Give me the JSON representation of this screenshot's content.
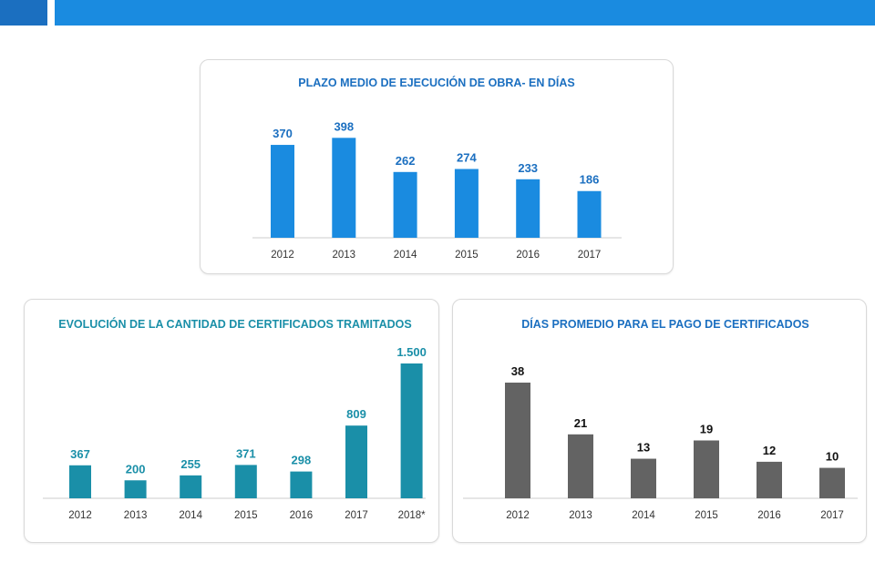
{
  "colors": {
    "header_bar": "#1a8be0",
    "header_bar_accent": "#1b6fc0",
    "chart1_bar": "#1a8be0",
    "chart1_text": "#1b6fc0",
    "chart2_bar": "#1a8fa8",
    "chart2_text": "#1a8fa8",
    "chart3_bar": "#636363",
    "chart3_text": "#111111",
    "axis": "#cccccc"
  },
  "chart_data": [
    {
      "type": "bar",
      "title": "PLAZO MEDIO DE EJECUCIÓN DE OBRA- EN DÍAS",
      "categories": [
        "2012",
        "2013",
        "2014",
        "2015",
        "2016",
        "2017"
      ],
      "values": [
        370,
        398,
        262,
        274,
        233,
        186
      ],
      "value_labels": [
        "370",
        "398",
        "262",
        "274",
        "233",
        "186"
      ],
      "ylim": [
        0,
        450
      ],
      "grid": false,
      "legend": "none"
    },
    {
      "type": "bar",
      "title": "EVOLUCIÓN DE LA CANTIDAD DE CERTIFICADOS TRAMITADOS",
      "categories": [
        "2012",
        "2013",
        "2014",
        "2015",
        "2016",
        "2017",
        "2018*"
      ],
      "values": [
        367,
        200,
        255,
        371,
        298,
        809,
        1500
      ],
      "value_labels": [
        "367",
        "200",
        "255",
        "371",
        "298",
        "809",
        "1.500"
      ],
      "ylim": [
        0,
        1500
      ],
      "grid": false,
      "legend": "none"
    },
    {
      "type": "bar",
      "title": "DÍAS PROMEDIO PARA EL PAGO DE CERTIFICADOS",
      "categories": [
        "2012",
        "2013",
        "2014",
        "2015",
        "2016",
        "2017"
      ],
      "values": [
        38,
        21,
        13,
        19,
        12,
        10
      ],
      "value_labels": [
        "38",
        "21",
        "13",
        "19",
        "12",
        "10"
      ],
      "ylim": [
        0,
        38
      ],
      "grid": false,
      "legend": "none"
    }
  ]
}
